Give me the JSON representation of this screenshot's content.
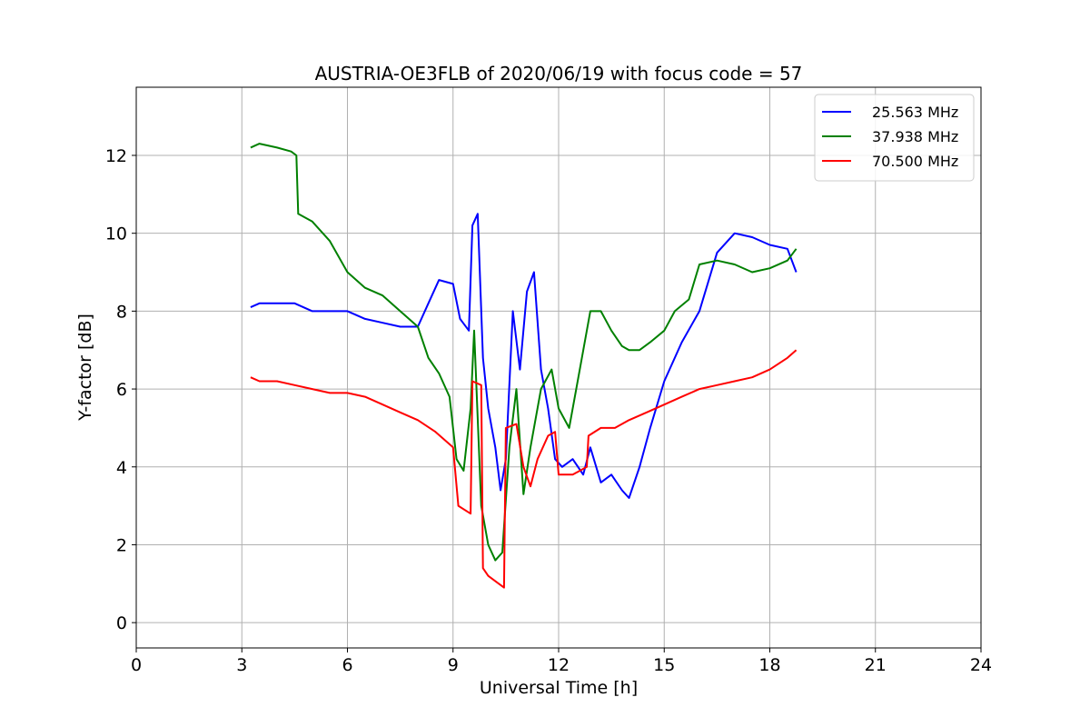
{
  "chart_data": {
    "type": "line",
    "title": "AUSTRIA-OE3FLB of 2020/06/19 with focus code = 57",
    "xlabel": "Universal Time [h]",
    "ylabel": "Y-factor [dB]",
    "xlim": [
      0,
      24
    ],
    "ylim": [
      -0.65,
      13.75
    ],
    "xticks": [
      "0",
      "3",
      "6",
      "9",
      "12",
      "15",
      "18",
      "21",
      "24"
    ],
    "yticks": [
      "0",
      "2",
      "4",
      "6",
      "8",
      "10",
      "12"
    ],
    "grid": true,
    "legend_position": "top-right",
    "series": [
      {
        "name": "25.563 MHz",
        "color": "#0000ff",
        "x": [
          3.25,
          3.5,
          4.0,
          4.5,
          5.0,
          5.5,
          6.0,
          6.5,
          7.0,
          7.5,
          8.0,
          8.3,
          8.6,
          9.0,
          9.2,
          9.45,
          9.55,
          9.7,
          9.85,
          10.0,
          10.2,
          10.35,
          10.5,
          10.7,
          10.9,
          11.1,
          11.3,
          11.5,
          11.7,
          11.9,
          12.1,
          12.4,
          12.7,
          12.9,
          13.2,
          13.5,
          13.8,
          14.0,
          14.3,
          14.6,
          15.0,
          15.5,
          16.0,
          16.5,
          17.0,
          17.5,
          18.0,
          18.5,
          18.75
        ],
        "y": [
          8.1,
          8.2,
          8.2,
          8.2,
          8.0,
          8.0,
          8.0,
          7.8,
          7.7,
          7.6,
          7.6,
          8.2,
          8.8,
          8.7,
          7.8,
          7.5,
          10.2,
          10.5,
          6.8,
          5.5,
          4.5,
          3.4,
          4.2,
          8.0,
          6.5,
          8.5,
          9.0,
          6.5,
          5.5,
          4.2,
          4.0,
          4.2,
          3.8,
          4.5,
          3.6,
          3.8,
          3.4,
          3.2,
          4.0,
          5.0,
          6.2,
          7.2,
          8.0,
          9.5,
          10.0,
          9.9,
          9.7,
          9.6,
          9.0
        ]
      },
      {
        "name": "37.938 MHz",
        "color": "#008000",
        "x": [
          3.25,
          3.5,
          4.0,
          4.4,
          4.55,
          4.6,
          5.0,
          5.5,
          6.0,
          6.5,
          7.0,
          7.5,
          8.0,
          8.3,
          8.6,
          8.9,
          9.1,
          9.3,
          9.5,
          9.6,
          9.8,
          10.0,
          10.2,
          10.4,
          10.6,
          10.8,
          11.0,
          11.2,
          11.5,
          11.8,
          12.0,
          12.3,
          12.6,
          12.9,
          13.2,
          13.5,
          13.8,
          14.0,
          14.3,
          14.6,
          15.0,
          15.3,
          15.7,
          16.0,
          16.5,
          17.0,
          17.5,
          18.0,
          18.5,
          18.75
        ],
        "y": [
          12.2,
          12.3,
          12.2,
          12.1,
          12.0,
          10.5,
          10.3,
          9.8,
          9.0,
          8.6,
          8.4,
          8.0,
          7.6,
          6.8,
          6.4,
          5.8,
          4.2,
          3.9,
          5.5,
          7.5,
          3.0,
          2.0,
          1.6,
          1.8,
          4.5,
          6.0,
          3.3,
          4.5,
          6.0,
          6.5,
          5.5,
          5.0,
          6.5,
          8.0,
          8.0,
          7.5,
          7.1,
          7.0,
          7.0,
          7.2,
          7.5,
          8.0,
          8.3,
          9.2,
          9.3,
          9.2,
          9.0,
          9.1,
          9.3,
          9.6
        ]
      },
      {
        "name": "70.500 MHz",
        "color": "#ff0000",
        "x": [
          3.25,
          3.5,
          4.0,
          4.5,
          5.0,
          5.5,
          6.0,
          6.5,
          7.0,
          7.5,
          8.0,
          8.5,
          9.0,
          9.15,
          9.5,
          9.55,
          9.8,
          9.85,
          10.0,
          10.3,
          10.45,
          10.5,
          10.8,
          11.0,
          11.2,
          11.4,
          11.7,
          11.9,
          12.0,
          12.4,
          12.8,
          12.85,
          13.2,
          13.6,
          14.0,
          14.5,
          15.0,
          15.5,
          16.0,
          16.5,
          17.0,
          17.5,
          18.0,
          18.5,
          18.75
        ],
        "y": [
          6.3,
          6.2,
          6.2,
          6.1,
          6.0,
          5.9,
          5.9,
          5.8,
          5.6,
          5.4,
          5.2,
          4.9,
          4.5,
          3.0,
          2.8,
          6.2,
          6.1,
          1.4,
          1.2,
          1.0,
          0.9,
          5.0,
          5.1,
          4.0,
          3.5,
          4.2,
          4.8,
          4.9,
          3.8,
          3.8,
          4.0,
          4.8,
          5.0,
          5.0,
          5.2,
          5.4,
          5.6,
          5.8,
          6.0,
          6.1,
          6.2,
          6.3,
          6.5,
          6.8,
          7.0
        ]
      }
    ]
  }
}
